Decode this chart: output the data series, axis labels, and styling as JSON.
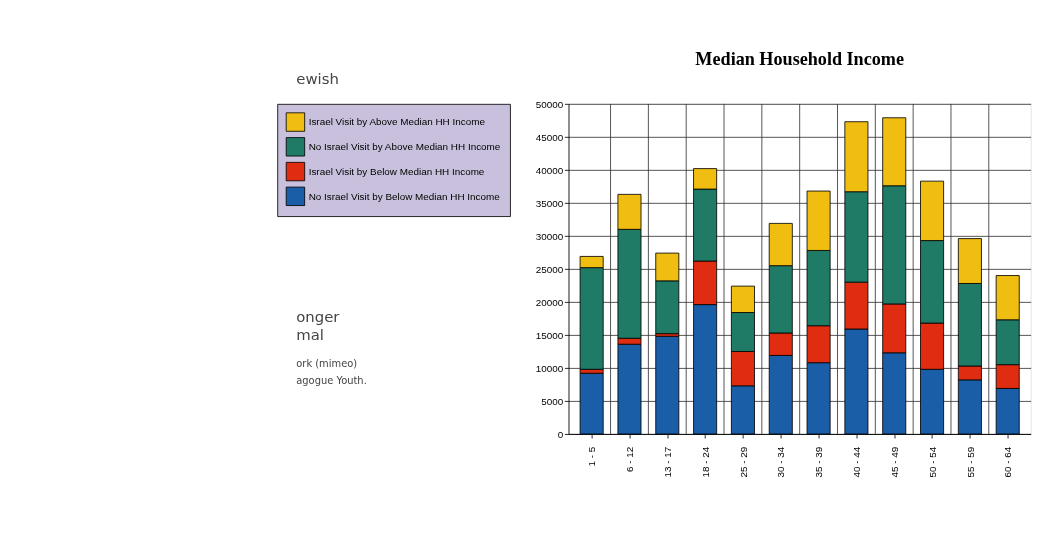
{
  "chart_data": {
    "type": "bar",
    "title": "Median Household Income",
    "stacked": true,
    "categories": [
      "1 - 5",
      "6 - 12",
      "13 - 17",
      "18 - 24",
      "25 - 29",
      "30 - 34",
      "35 - 39",
      "40 - 44",
      "45 - 49",
      "50 - 54",
      "55 - 59",
      "60 - 64"
    ],
    "series": [
      {
        "name": "No Israel Visit by Below Median HH Income",
        "color": "#1a5ea8",
        "values": [
          9200,
          13600,
          14800,
          19600,
          7300,
          11900,
          10800,
          15900,
          12300,
          9800,
          8200,
          6900
        ]
      },
      {
        "name": "Israel Visit by Below Median HH Income",
        "color": "#e02c10",
        "values": [
          600,
          900,
          400,
          6600,
          5200,
          3400,
          5600,
          7100,
          7400,
          7000,
          2100,
          3600
        ]
      },
      {
        "name": "No Israel Visit by Above Median HH Income",
        "color": "#1f7a66",
        "values": [
          15400,
          16500,
          8000,
          10900,
          5900,
          10200,
          11400,
          13700,
          17900,
          12500,
          12500,
          6800
        ]
      },
      {
        "name": "Israel Visit by Above Median HH Income",
        "color": "#f0be10",
        "values": [
          1700,
          5300,
          4200,
          3100,
          4000,
          6400,
          9000,
          10600,
          10300,
          9000,
          6800,
          6700
        ]
      }
    ],
    "ylim": [
      0,
      50000
    ],
    "yticks": [
      0,
      5000,
      10000,
      15000,
      20000,
      25000,
      30000,
      35000,
      40000,
      45000,
      50000
    ],
    "grid": true,
    "legend": "left",
    "annotations": [
      "ewish",
      "onger",
      "mal",
      "ork (mimeo)",
      "agogue Youth."
    ]
  }
}
